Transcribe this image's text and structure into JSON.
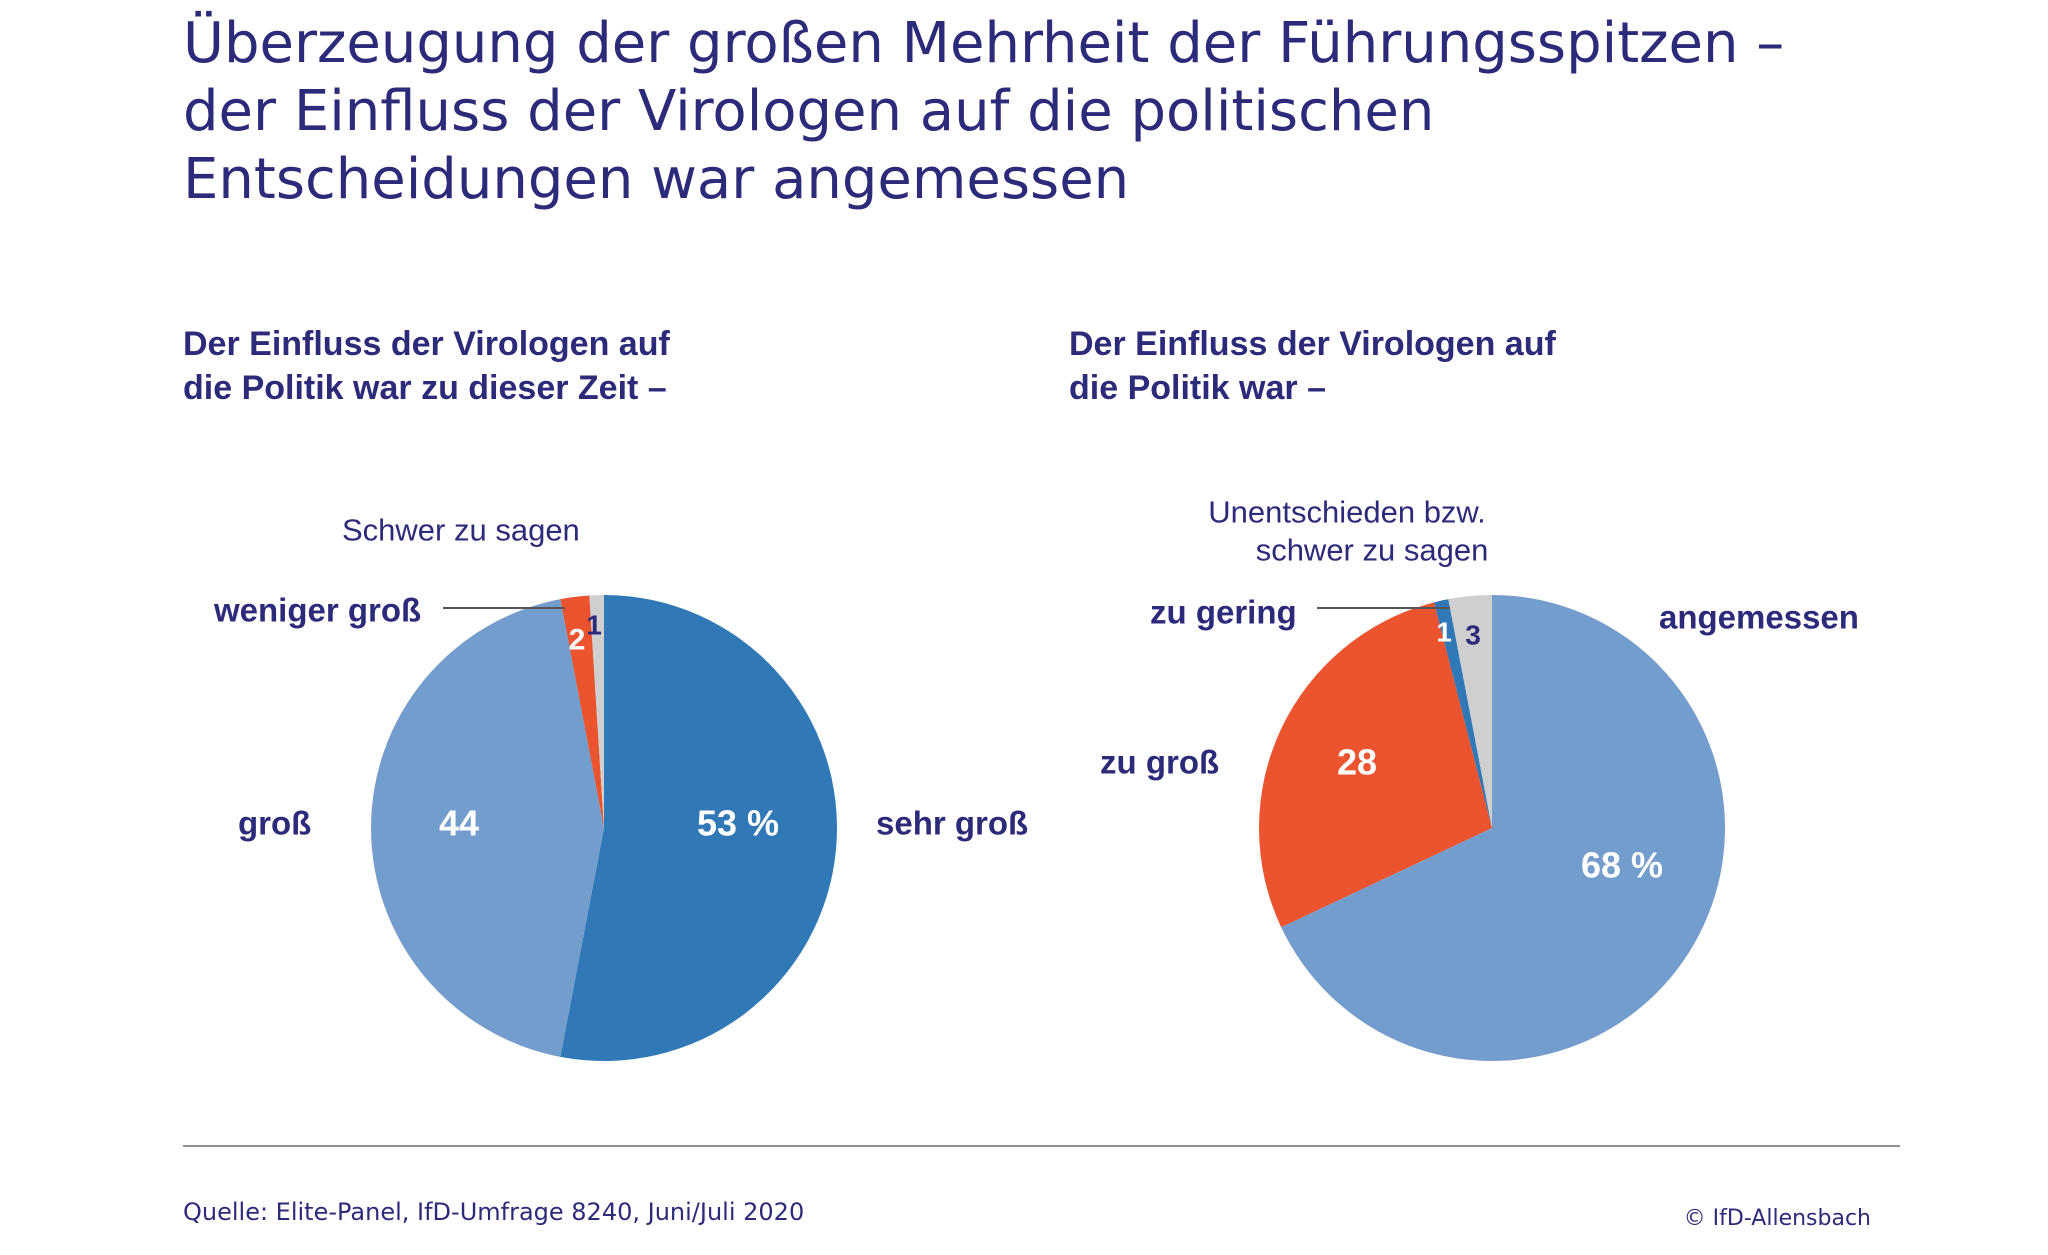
{
  "headline": {
    "line1": "Überzeugung der großen Mehrheit der Führungsspitzen –",
    "line2": "der Einfluss der Virologen auf die politischen",
    "line3": "Entscheidungen war angemessen"
  },
  "colors": {
    "text": "#2e2a7a",
    "dark_blue": "#3078b6",
    "light_blue": "#739dcd",
    "red": "#ec5430",
    "grey": "#cfcfcf",
    "white": "#ffffff"
  },
  "chart_data": [
    {
      "type": "pie",
      "title": "Der Einfluss der Virologen auf die Politik war zu dieser Zeit –",
      "title_lines": [
        "Der Einfluss der Virologen auf",
        "die Politik war zu dieser Zeit –"
      ],
      "slices": [
        {
          "label": "sehr groß",
          "value": 53,
          "value_label": "53 %",
          "color": "#3078b6",
          "value_color": "#ffffff"
        },
        {
          "label": "groß",
          "value": 44,
          "value_label": "44",
          "color": "#739dcd",
          "value_color": "#ffffff"
        },
        {
          "label": "weniger groß",
          "value": 2,
          "value_label": "2",
          "color": "#ec5430",
          "value_color": "#ffffff"
        },
        {
          "label": "Schwer zu sagen",
          "value": 1,
          "value_label": "1",
          "color": "#cfcfcf",
          "value_color": "#2e2a7a"
        }
      ]
    },
    {
      "type": "pie",
      "title": "Der Einfluss der Virologen auf die Politik war –",
      "title_lines": [
        "Der Einfluss der Virologen auf",
        "die Politik war –"
      ],
      "slices": [
        {
          "label": "angemessen",
          "value": 68,
          "value_label": "68 %",
          "color": "#739dcd",
          "value_color": "#ffffff"
        },
        {
          "label": "zu groß",
          "value": 28,
          "value_label": "28",
          "color": "#ec5430",
          "value_color": "#ffffff"
        },
        {
          "label": "zu gering",
          "value": 1,
          "value_label": "1",
          "color": "#3078b6",
          "value_color": "#ffffff"
        },
        {
          "label": "Unentschieden bzw. schwer zu sagen",
          "label_lines": [
            "Unentschieden bzw.",
            "schwer zu sagen"
          ],
          "value": 3,
          "value_label": "3",
          "color": "#cfcfcf",
          "value_color": "#2e2a7a"
        }
      ]
    }
  ],
  "footer": {
    "source": "Quelle: Elite-Panel, IfD-Umfrage 8240, Juni/Juli 2020",
    "copyright": "© IfD-Allensbach"
  }
}
